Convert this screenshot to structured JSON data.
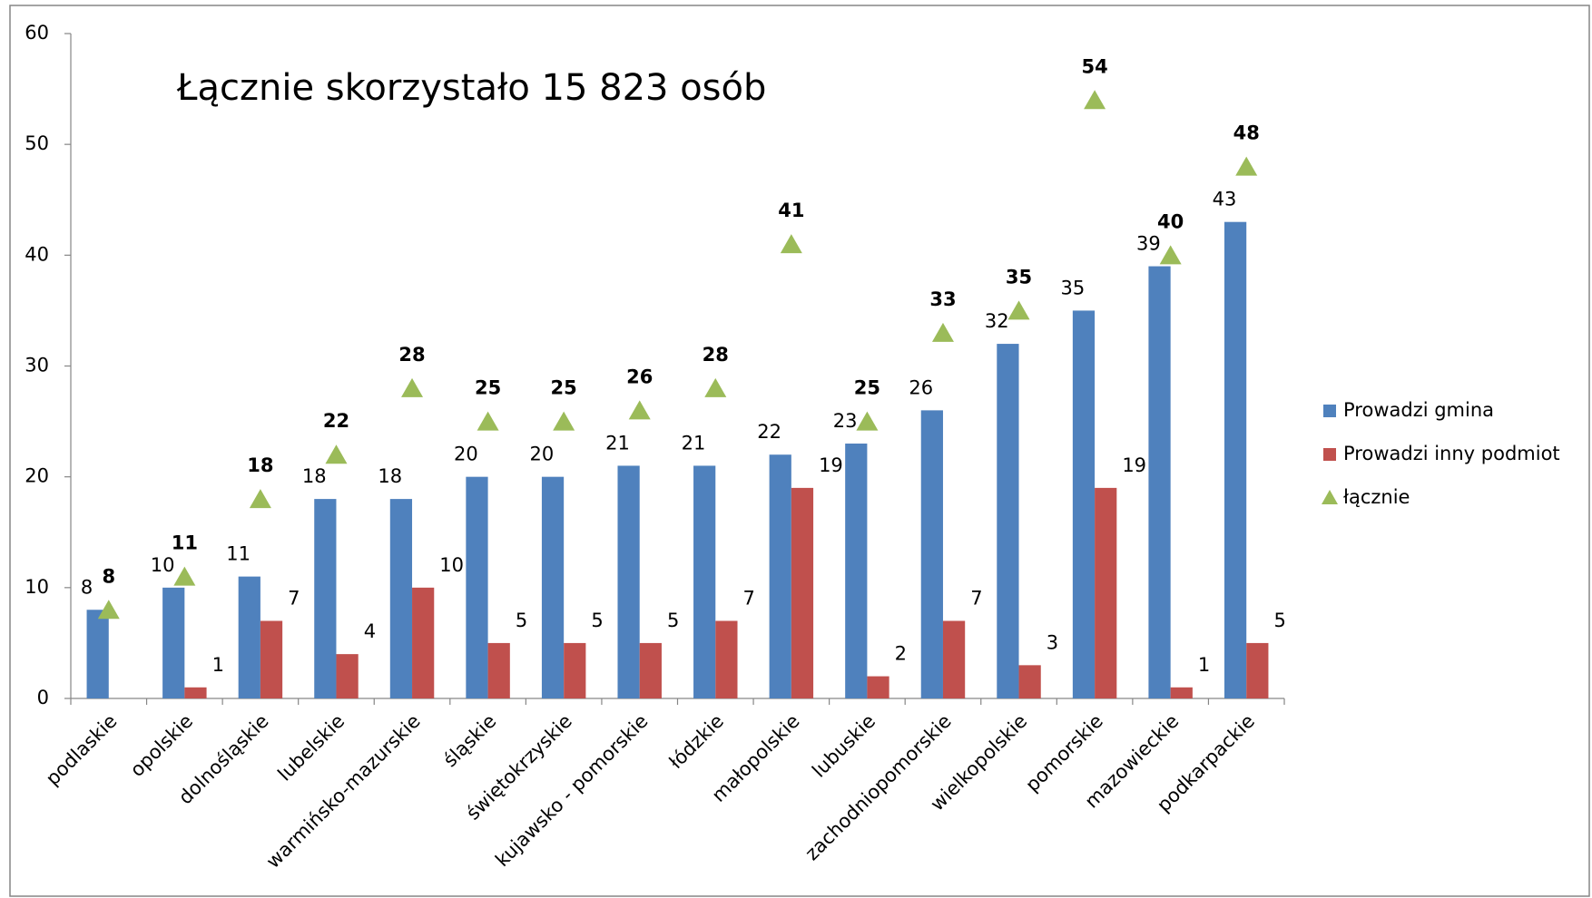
{
  "chart_data": {
    "type": "bar",
    "annotation": "Łącznie skorzystało 15 823 osób",
    "categories": [
      "podlaskie",
      "opolskie",
      "dolnośląskie",
      "lubelskie",
      "warmińsko-mazurskie",
      "śląskie",
      "świętokrzyskie",
      "kujawsko - pomorskie",
      "łódzkie",
      "małopolskie",
      "lubuskie",
      "zachodniopomorskie",
      "wielkopolskie",
      "pomorskie",
      "mazowieckie",
      "podkarpackie"
    ],
    "series": [
      {
        "name": "Prowadzi gmina",
        "color": "#4f81bd",
        "marker": "bar",
        "values": [
          8,
          10,
          11,
          18,
          18,
          20,
          20,
          21,
          21,
          22,
          23,
          26,
          32,
          35,
          39,
          43
        ]
      },
      {
        "name": "Prowadzi inny podmiot",
        "color": "#c0504d",
        "marker": "bar",
        "values": [
          null,
          1,
          7,
          4,
          10,
          5,
          5,
          5,
          7,
          19,
          2,
          7,
          3,
          19,
          1,
          5
        ]
      },
      {
        "name": "łącznie",
        "color": "#9bbb59",
        "marker": "triangle",
        "values": [
          8,
          11,
          18,
          22,
          28,
          25,
          25,
          26,
          28,
          41,
          25,
          33,
          35,
          54,
          40,
          48
        ]
      }
    ],
    "ylim": [
      0,
      60
    ],
    "yticks": [
      0,
      10,
      20,
      30,
      40,
      50,
      60
    ],
    "grid": false,
    "legend": "right"
  }
}
